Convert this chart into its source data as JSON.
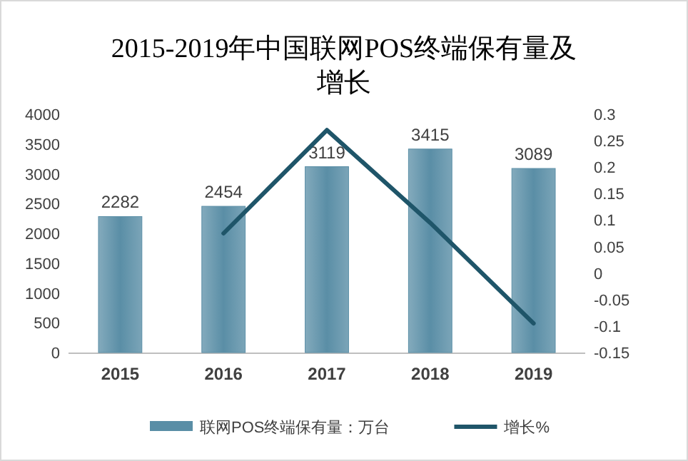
{
  "chart_data": {
    "type": "bar",
    "title": "2015-2019年中国联网POS终端保有量及增长",
    "categories": [
      "2015",
      "2016",
      "2017",
      "2018",
      "2019"
    ],
    "series": [
      {
        "name": "联网POS终端保有量：万台",
        "color": "#5a8ea6",
        "values": [
          2282,
          2454,
          3119,
          3415,
          3089
        ],
        "value_labels": [
          "2282",
          "2454",
          "3119",
          "3415",
          "3089"
        ]
      },
      {
        "name": "增长%",
        "type": "line",
        "axis": "y2",
        "color": "#1f5569",
        "values": [
          null,
          0.075,
          0.27,
          0.095,
          -0.095
        ]
      }
    ],
    "ylim": [
      0,
      4000
    ],
    "yticks": [
      0,
      500,
      1000,
      1500,
      2000,
      2500,
      3000,
      3500,
      4000
    ],
    "y2lim": [
      -0.15,
      0.3
    ],
    "y2ticks": [
      -0.15,
      -0.1,
      -0.05,
      0,
      0.05,
      0.1,
      0.15,
      0.2,
      0.25,
      0.3
    ],
    "legend": "bottom",
    "grid": false,
    "marker": "none"
  }
}
